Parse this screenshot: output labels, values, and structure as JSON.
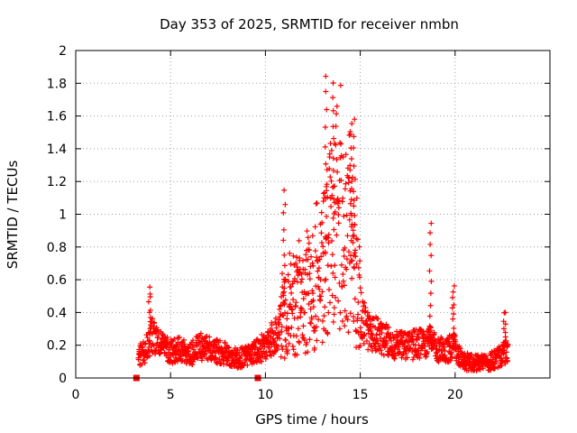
{
  "chart_data": {
    "type": "scatter",
    "title": "Day 353 of 2025, SRMTID for receiver nmbn",
    "xlabel": "GPS time / hours",
    "ylabel": "SRMTID / TECUs",
    "xlim": [
      0,
      25
    ],
    "ylim": [
      0,
      2
    ],
    "xticks": [
      0,
      5,
      10,
      15,
      20
    ],
    "yticks": [
      0,
      0.2,
      0.4,
      0.6,
      0.8,
      1,
      1.2,
      1.4,
      1.6,
      1.8,
      2
    ],
    "ytick_labels": [
      "0",
      "0.2",
      "0.4",
      "0.6",
      "0.8",
      "1",
      "1.2",
      "1.4",
      "1.6",
      "1.8",
      "2"
    ],
    "xtick_labels": [
      "0",
      "5",
      "10",
      "15",
      "20"
    ],
    "grid": true,
    "marker": "plus",
    "color": "#ff0000",
    "series": [
      {
        "name": "SRMTID",
        "coarse_profile_x": [
          3.3,
          3.6,
          3.8,
          4.0,
          4.5,
          5.0,
          5.5,
          6.0,
          6.5,
          7.0,
          7.5,
          8.0,
          8.5,
          9.0,
          9.5,
          10.0,
          10.5,
          10.8,
          11.0,
          11.3,
          11.6,
          12.0,
          12.3,
          12.6,
          12.9,
          13.1,
          13.3,
          13.6,
          13.9,
          14.2,
          14.5,
          14.8,
          15.0,
          15.3,
          15.6,
          16.0,
          16.5,
          17.0,
          17.5,
          18.0,
          18.5,
          18.8,
          19.0,
          19.5,
          19.9,
          20.2,
          20.6,
          21.0,
          21.5,
          22.0,
          22.4,
          22.8
        ],
        "coarse_profile_y": [
          0.14,
          0.15,
          0.2,
          0.26,
          0.2,
          0.16,
          0.17,
          0.14,
          0.19,
          0.18,
          0.16,
          0.14,
          0.12,
          0.13,
          0.16,
          0.2,
          0.26,
          0.32,
          0.38,
          0.42,
          0.46,
          0.44,
          0.5,
          0.55,
          0.6,
          0.72,
          0.8,
          0.9,
          0.95,
          0.95,
          0.85,
          0.6,
          0.4,
          0.3,
          0.28,
          0.25,
          0.22,
          0.2,
          0.19,
          0.21,
          0.2,
          0.24,
          0.18,
          0.16,
          0.2,
          0.13,
          0.1,
          0.09,
          0.09,
          0.11,
          0.13,
          0.17
        ],
        "peaks": [
          {
            "x": 3.9,
            "y": 0.56
          },
          {
            "x": 11.0,
            "y": 1.15
          },
          {
            "x": 13.2,
            "y": 1.85
          },
          {
            "x": 13.6,
            "y": 1.8
          },
          {
            "x": 14.5,
            "y": 1.56
          },
          {
            "x": 14.7,
            "y": 1.57
          },
          {
            "x": 18.7,
            "y": 0.95
          },
          {
            "x": 19.9,
            "y": 0.57
          },
          {
            "x": 22.6,
            "y": 0.41
          }
        ],
        "zero_points": [
          {
            "x": 3.2,
            "y": 0
          },
          {
            "x": 9.6,
            "y": 0
          }
        ]
      }
    ]
  }
}
